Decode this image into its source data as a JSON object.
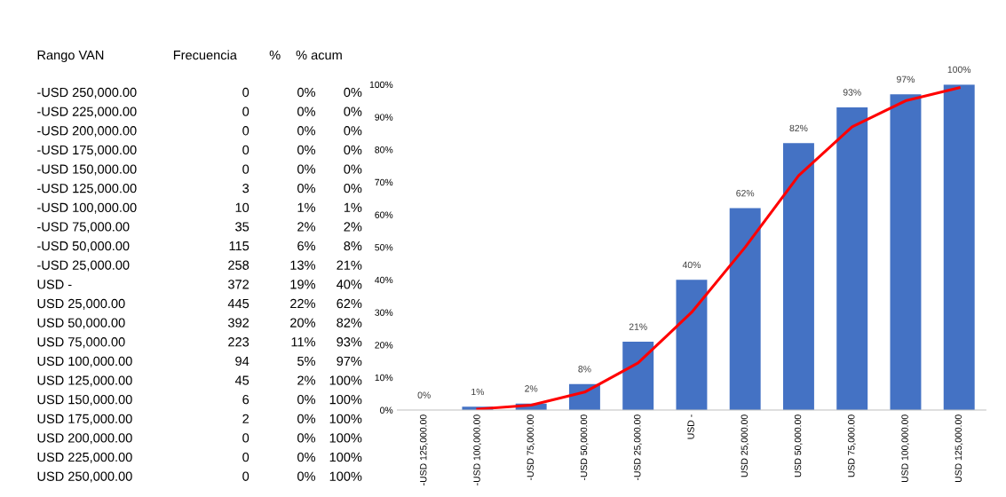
{
  "chart_data": [
    {
      "type": "other",
      "annotations": [
        "Rango VAN",
        "Frecuencia",
        "%",
        "% acum",
        "-USD 250,000.00",
        "0",
        "0%",
        "0%",
        "-USD 225,000.00",
        "0",
        "0%",
        "0%",
        "-USD 200,000.00",
        "0",
        "0%",
        "0%",
        "-USD 175,000.00",
        "0",
        "0%",
        "0%",
        "-USD 150,000.00",
        "0",
        "0%",
        "0%",
        "-USD 125,000.00",
        "3",
        "0%",
        "0%",
        "-USD 100,000.00",
        "10",
        "1%",
        "1%",
        "-USD 75,000.00",
        "35",
        "2%",
        "2%",
        "-USD 50,000.00",
        "115",
        "6%",
        "8%",
        "-USD 25,000.00",
        "258",
        "13%",
        "21%",
        "USD -",
        "372",
        "19%",
        "40%",
        "USD 25,000.00",
        "445",
        "22%",
        "62%",
        "USD 50,000.00",
        "392",
        "20%",
        "82%",
        "USD 75,000.00",
        "223",
        "11%",
        "93%",
        "USD 100,000.00",
        "94",
        "5%",
        "97%",
        "USD 125,000.00",
        "45",
        "2%",
        "100%",
        "USD 150,000.00",
        "6",
        "0%",
        "100%",
        "USD 175,000.00",
        "2",
        "0%",
        "100%",
        "USD 200,000.00",
        "0",
        "0%",
        "100%",
        "USD 225,000.00",
        "0",
        "0%",
        "100%",
        "USD 250,000.00",
        "0",
        "0%",
        "100%"
      ]
    },
    {
      "type": "bar",
      "categories": [
        "-USD 125,000.00",
        "-USD 100,000.00",
        "-USD 75,000.00",
        "-USD 50,000.00",
        "-USD 25,000.00",
        "USD -",
        "USD 25,000.00",
        "USD 50,000.00",
        "USD 75,000.00",
        "USD 100,000.00",
        "USD 125,000.00"
      ],
      "series": [
        {
          "type": "bar",
          "color": "#4472c4",
          "values": [
            0,
            1,
            2,
            8,
            21,
            40,
            62,
            82,
            93,
            97,
            100
          ],
          "value_labels": [
            "0%",
            "1%",
            "2%",
            "8%",
            "21%",
            "40%",
            "62%",
            "82%",
            "93%",
            "97%",
            "100%"
          ]
        },
        {
          "type": "line",
          "color": "#ff0000",
          "values": [
            null,
            0.3,
            1.5,
            5.5,
            14.5,
            30,
            50,
            72,
            87,
            95,
            99
          ]
        }
      ],
      "ylim": [
        0,
        100
      ],
      "yticks": [
        {
          "value": 0,
          "label": "0%"
        },
        {
          "value": 10,
          "label": "10%"
        },
        {
          "value": 20,
          "label": "20%"
        },
        {
          "value": 30,
          "label": "30%"
        },
        {
          "value": 40,
          "label": "40%"
        },
        {
          "value": 50,
          "label": "50%"
        },
        {
          "value": 60,
          "label": "60%"
        },
        {
          "value": 70,
          "label": "70%"
        },
        {
          "value": 80,
          "label": "80%"
        },
        {
          "value": 90,
          "label": "90%"
        },
        {
          "value": 100,
          "label": "100%"
        }
      ],
      "grid": false,
      "legend": false,
      "marker": "none",
      "line_style": "solid"
    }
  ]
}
